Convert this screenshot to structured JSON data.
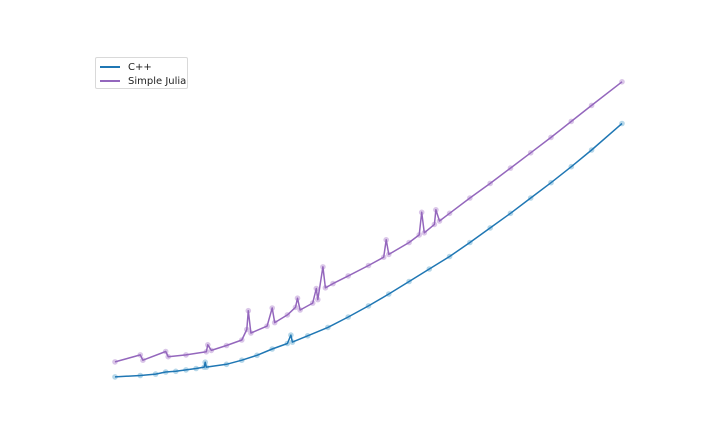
{
  "chart_data": {
    "type": "line",
    "title": "",
    "xlabel": "",
    "ylabel": "",
    "axes_visible": false,
    "grid": false,
    "legend_placement": "top-left",
    "xlim": [
      0,
      1
    ],
    "ylim": [
      0,
      1
    ],
    "series": [
      {
        "name": "C++",
        "color": "#1f77b4",
        "marker_color": "#9ecae1",
        "points": [
          [
            0.0,
            0.032
          ],
          [
            0.05,
            0.036
          ],
          [
            0.08,
            0.04
          ],
          [
            0.1,
            0.046
          ],
          [
            0.12,
            0.048
          ],
          [
            0.14,
            0.052
          ],
          [
            0.16,
            0.056
          ],
          [
            0.176,
            0.06
          ],
          [
            0.178,
            0.074
          ],
          [
            0.18,
            0.06
          ],
          [
            0.22,
            0.068
          ],
          [
            0.25,
            0.08
          ],
          [
            0.28,
            0.094
          ],
          [
            0.31,
            0.112
          ],
          [
            0.34,
            0.128
          ],
          [
            0.347,
            0.152
          ],
          [
            0.35,
            0.132
          ],
          [
            0.38,
            0.15
          ],
          [
            0.42,
            0.174
          ],
          [
            0.46,
            0.204
          ],
          [
            0.5,
            0.236
          ],
          [
            0.54,
            0.27
          ],
          [
            0.58,
            0.306
          ],
          [
            0.62,
            0.342
          ],
          [
            0.66,
            0.378
          ],
          [
            0.7,
            0.418
          ],
          [
            0.74,
            0.46
          ],
          [
            0.78,
            0.502
          ],
          [
            0.82,
            0.546
          ],
          [
            0.86,
            0.59
          ],
          [
            0.9,
            0.636
          ],
          [
            0.94,
            0.684
          ],
          [
            1.0,
            0.76
          ]
        ]
      },
      {
        "name": "Simple Julia",
        "color": "#9467bd",
        "marker_color": "#cdb3e0",
        "points": [
          [
            0.0,
            0.075
          ],
          [
            0.05,
            0.095
          ],
          [
            0.055,
            0.08
          ],
          [
            0.1,
            0.105
          ],
          [
            0.105,
            0.09
          ],
          [
            0.14,
            0.095
          ],
          [
            0.18,
            0.104
          ],
          [
            0.183,
            0.124
          ],
          [
            0.19,
            0.108
          ],
          [
            0.22,
            0.122
          ],
          [
            0.25,
            0.138
          ],
          [
            0.26,
            0.168
          ],
          [
            0.263,
            0.222
          ],
          [
            0.268,
            0.158
          ],
          [
            0.3,
            0.178
          ],
          [
            0.31,
            0.23
          ],
          [
            0.315,
            0.188
          ],
          [
            0.34,
            0.21
          ],
          [
            0.356,
            0.232
          ],
          [
            0.36,
            0.258
          ],
          [
            0.365,
            0.224
          ],
          [
            0.39,
            0.244
          ],
          [
            0.397,
            0.286
          ],
          [
            0.4,
            0.254
          ],
          [
            0.41,
            0.348
          ],
          [
            0.415,
            0.288
          ],
          [
            0.43,
            0.3
          ],
          [
            0.46,
            0.322
          ],
          [
            0.5,
            0.352
          ],
          [
            0.53,
            0.376
          ],
          [
            0.535,
            0.426
          ],
          [
            0.54,
            0.384
          ],
          [
            0.58,
            0.418
          ],
          [
            0.6,
            0.44
          ],
          [
            0.605,
            0.505
          ],
          [
            0.61,
            0.446
          ],
          [
            0.63,
            0.47
          ],
          [
            0.633,
            0.512
          ],
          [
            0.64,
            0.48
          ],
          [
            0.66,
            0.502
          ],
          [
            0.7,
            0.546
          ],
          [
            0.74,
            0.588
          ],
          [
            0.78,
            0.632
          ],
          [
            0.82,
            0.676
          ],
          [
            0.86,
            0.72
          ],
          [
            0.9,
            0.766
          ],
          [
            0.94,
            0.812
          ],
          [
            1.0,
            0.88
          ]
        ]
      }
    ]
  }
}
